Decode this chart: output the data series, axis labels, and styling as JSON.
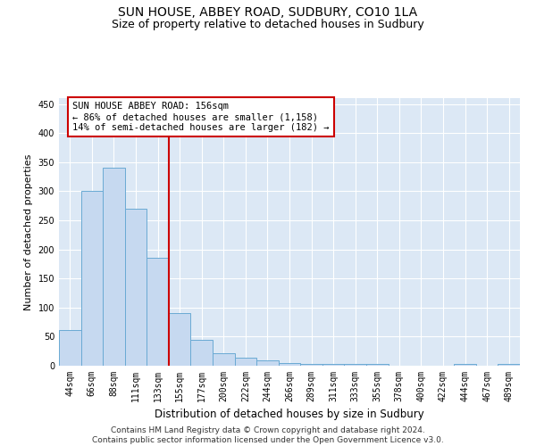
{
  "title1": "SUN HOUSE, ABBEY ROAD, SUDBURY, CO10 1LA",
  "title2": "Size of property relative to detached houses in Sudbury",
  "xlabel": "Distribution of detached houses by size in Sudbury",
  "ylabel": "Number of detached properties",
  "categories": [
    "44sqm",
    "66sqm",
    "88sqm",
    "111sqm",
    "133sqm",
    "155sqm",
    "177sqm",
    "200sqm",
    "222sqm",
    "244sqm",
    "266sqm",
    "289sqm",
    "311sqm",
    "333sqm",
    "355sqm",
    "378sqm",
    "400sqm",
    "422sqm",
    "444sqm",
    "467sqm",
    "489sqm"
  ],
  "values": [
    62,
    300,
    340,
    270,
    185,
    90,
    45,
    22,
    14,
    9,
    5,
    3,
    3,
    3,
    3,
    0,
    0,
    0,
    3,
    0,
    3
  ],
  "bar_color": "#c6d9f0",
  "bar_edge_color": "#6aaad4",
  "vline_x_index": 4.5,
  "vline_color": "#cc0000",
  "annotation_text": "SUN HOUSE ABBEY ROAD: 156sqm\n← 86% of detached houses are smaller (1,158)\n14% of semi-detached houses are larger (182) →",
  "annotation_box_color": "white",
  "annotation_box_edge_color": "#cc0000",
  "ylim": [
    0,
    460
  ],
  "yticks": [
    0,
    50,
    100,
    150,
    200,
    250,
    300,
    350,
    400,
    450
  ],
  "background_color": "#dce8f5",
  "footer_text": "Contains HM Land Registry data © Crown copyright and database right 2024.\nContains public sector information licensed under the Open Government Licence v3.0.",
  "title1_fontsize": 10,
  "title2_fontsize": 9,
  "xlabel_fontsize": 8.5,
  "ylabel_fontsize": 8,
  "footer_fontsize": 6.5,
  "tick_fontsize": 7
}
